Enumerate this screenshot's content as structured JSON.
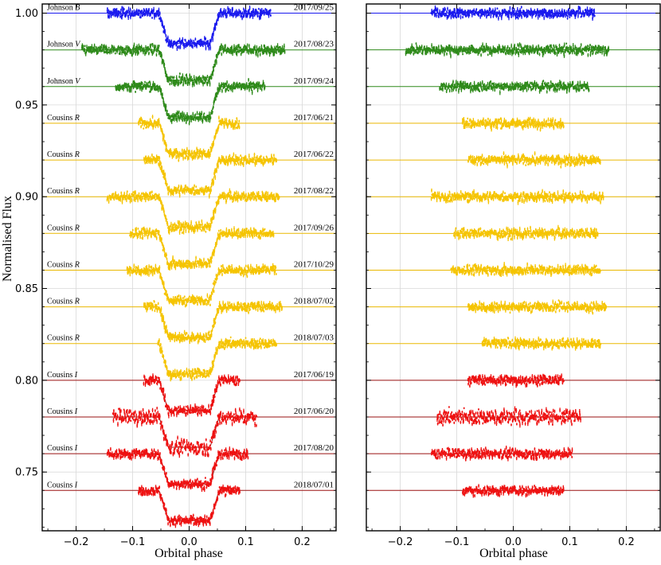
{
  "chart_data": [
    {
      "type": "scatter",
      "panel": "left",
      "title": "",
      "xlabel": "Orbital phase",
      "ylabel": "Normalised Flux",
      "xlim": [
        -0.26,
        0.26
      ],
      "ylim": [
        0.718,
        1.005
      ],
      "xticks": [
        -0.2,
        -0.1,
        0.0,
        0.1,
        0.2
      ],
      "xtick_labels": [
        "−0.2",
        "−0.1",
        "0.0",
        "0.1",
        "0.2"
      ],
      "yticks": [
        0.75,
        0.8,
        0.85,
        0.9,
        0.95,
        1.0
      ],
      "ytick_labels": [
        "0.75",
        "0.80",
        "0.85",
        "0.90",
        "0.95",
        "1.00"
      ],
      "grid": true,
      "content": "phase-folded transit light curves with model fits, vertically offset",
      "transit_model": {
        "depth": 0.0165,
        "contact1": -0.053,
        "contact2": -0.037,
        "contact3": 0.037,
        "contact4": 0.053
      }
    },
    {
      "type": "scatter",
      "panel": "right",
      "title": "",
      "xlabel": "Orbital phase",
      "ylabel": "",
      "xlim": [
        -0.26,
        0.26
      ],
      "ylim": [
        0.718,
        1.005
      ],
      "xticks": [
        -0.2,
        -0.1,
        0.0,
        0.1,
        0.2
      ],
      "xtick_labels": [
        "−0.2",
        "−0.1",
        "0.0",
        "0.1",
        "0.2"
      ],
      "grid": true,
      "content": "residuals after subtracting transit model, same vertical offsets"
    }
  ],
  "series": [
    {
      "filter": "Johnson",
      "band": "B",
      "date": "2017/09/25",
      "color": "#1a1aee",
      "line": "#1a1aee",
      "offset": 1.0,
      "range": [
        -0.145,
        0.145
      ]
    },
    {
      "filter": "Johnson",
      "band": "V",
      "date": "2017/08/23",
      "color": "#2e8a1a",
      "line": "#2e8a1a",
      "offset": 0.98,
      "range": [
        -0.19,
        0.17
      ]
    },
    {
      "filter": "Johnson",
      "band": "V",
      "date": "2017/09/24",
      "color": "#2e8a1a",
      "line": "#2e8a1a",
      "offset": 0.96,
      "range": [
        -0.13,
        0.135
      ]
    },
    {
      "filter": "Cousins",
      "band": "R",
      "date": "2017/06/21",
      "color": "#f5c400",
      "line": "#eab800",
      "offset": 0.94,
      "range": [
        -0.09,
        0.09
      ]
    },
    {
      "filter": "Cousins",
      "band": "R",
      "date": "2017/06/22",
      "color": "#f5c400",
      "line": "#eab800",
      "offset": 0.92,
      "range": [
        -0.08,
        0.155
      ]
    },
    {
      "filter": "Cousins",
      "band": "R",
      "date": "2017/08/22",
      "color": "#f5c400",
      "line": "#eab800",
      "offset": 0.9,
      "range": [
        -0.145,
        0.16
      ]
    },
    {
      "filter": "Cousins",
      "band": "R",
      "date": "2017/09/26",
      "color": "#f5c400",
      "line": "#eab800",
      "offset": 0.88,
      "range": [
        -0.105,
        0.15
      ]
    },
    {
      "filter": "Cousins",
      "band": "R",
      "date": "2017/10/29",
      "color": "#f5c400",
      "line": "#eab800",
      "offset": 0.86,
      "range": [
        -0.11,
        0.155
      ]
    },
    {
      "filter": "Cousins",
      "band": "R",
      "date": "2018/07/02",
      "color": "#f5c400",
      "line": "#eab800",
      "offset": 0.84,
      "range": [
        -0.08,
        0.165
      ]
    },
    {
      "filter": "Cousins",
      "band": "R",
      "date": "2018/07/03",
      "color": "#f5c400",
      "line": "#eab800",
      "offset": 0.82,
      "range": [
        -0.055,
        0.155
      ]
    },
    {
      "filter": "Cousins",
      "band": "I",
      "date": "2017/06/19",
      "color": "#ee1111",
      "line": "#9a1010",
      "offset": 0.8,
      "range": [
        -0.08,
        0.09
      ]
    },
    {
      "filter": "Cousins",
      "band": "I",
      "date": "2017/06/20",
      "color": "#ee1111",
      "line": "#9a1010",
      "offset": 0.78,
      "range": [
        -0.135,
        0.12
      ]
    },
    {
      "filter": "Cousins",
      "band": "I",
      "date": "2017/08/20",
      "color": "#ee1111",
      "line": "#9a1010",
      "offset": 0.76,
      "range": [
        -0.145,
        0.105
      ]
    },
    {
      "filter": "Cousins",
      "band": "I",
      "date": "2018/07/01",
      "color": "#ee1111",
      "line": "#9a1010",
      "offset": 0.74,
      "range": [
        -0.09,
        0.09
      ]
    }
  ]
}
